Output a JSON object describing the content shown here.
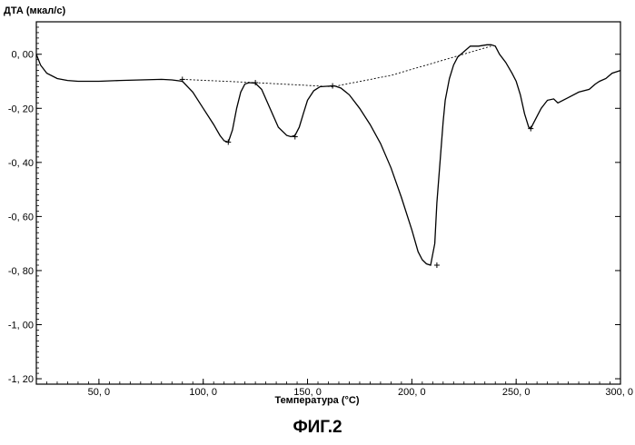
{
  "chart_data": {
    "type": "line",
    "ylabel": "ДТА (мкал/с)",
    "xlabel": "Температура (°C)",
    "xlim": [
      20,
      300
    ],
    "ylim": [
      -1.22,
      0.12
    ],
    "x_ticks": [
      50,
      100,
      150,
      200,
      250,
      300
    ],
    "x_tick_labels": [
      "50, 0",
      "100, 0",
      "150, 0",
      "200, 0",
      "250, 0",
      "300, 0"
    ],
    "y_ticks": [
      0.0,
      -0.2,
      -0.4,
      -0.6,
      -0.8,
      -1.0,
      -1.2
    ],
    "y_tick_labels": [
      "0, 00",
      "-0, 20",
      "-0, 40",
      "-0, 60",
      "-0, 80",
      "-1, 00",
      "-1, 20"
    ],
    "grid": false,
    "series": [
      {
        "x": [
          20,
          22,
          25,
          30,
          35,
          40,
          50,
          60,
          70,
          80,
          85,
          90,
          95,
          100,
          105,
          108,
          110,
          112,
          114,
          116,
          118,
          120,
          122,
          125,
          128,
          132,
          136,
          140,
          142,
          144,
          146,
          148,
          150,
          153,
          156,
          160,
          163,
          166,
          170,
          175,
          180,
          185,
          190,
          195,
          200,
          203,
          205,
          207,
          209,
          211,
          212,
          213,
          214,
          215,
          216,
          218,
          220,
          222,
          225,
          228,
          232,
          236,
          238,
          240,
          242,
          245,
          248,
          250,
          252,
          254,
          256,
          257,
          258,
          260,
          262,
          265,
          268,
          270,
          275,
          280,
          285,
          288,
          290,
          293,
          296,
          300
        ],
        "y": [
          0.0,
          -0.04,
          -0.07,
          -0.09,
          -0.097,
          -0.1,
          -0.1,
          -0.097,
          -0.095,
          -0.093,
          -0.095,
          -0.1,
          -0.14,
          -0.2,
          -0.26,
          -0.3,
          -0.32,
          -0.325,
          -0.28,
          -0.2,
          -0.14,
          -0.11,
          -0.105,
          -0.107,
          -0.13,
          -0.2,
          -0.27,
          -0.3,
          -0.305,
          -0.3,
          -0.27,
          -0.22,
          -0.17,
          -0.135,
          -0.12,
          -0.118,
          -0.117,
          -0.125,
          -0.15,
          -0.2,
          -0.26,
          -0.33,
          -0.42,
          -0.53,
          -0.65,
          -0.73,
          -0.76,
          -0.775,
          -0.78,
          -0.7,
          -0.55,
          -0.45,
          -0.35,
          -0.25,
          -0.17,
          -0.09,
          -0.04,
          -0.01,
          0.01,
          0.03,
          0.03,
          0.035,
          0.035,
          0.03,
          0.0,
          -0.03,
          -0.07,
          -0.1,
          -0.15,
          -0.22,
          -0.27,
          -0.275,
          -0.26,
          -0.23,
          -0.2,
          -0.17,
          -0.165,
          -0.18,
          -0.16,
          -0.14,
          -0.13,
          -0.11,
          -0.1,
          -0.09,
          -0.07,
          -0.06
        ]
      }
    ],
    "baseline": {
      "x": [
        90,
        125,
        162,
        190,
        210,
        238
      ],
      "y": [
        -0.093,
        -0.105,
        -0.12,
        -0.078,
        -0.033,
        0.03
      ]
    },
    "markers": {
      "x": [
        90,
        112,
        125,
        144,
        162,
        212,
        257
      ],
      "y": [
        -0.093,
        -0.325,
        -0.105,
        -0.305,
        -0.117,
        -0.78,
        -0.275
      ]
    }
  },
  "caption": "ФИГ.2"
}
